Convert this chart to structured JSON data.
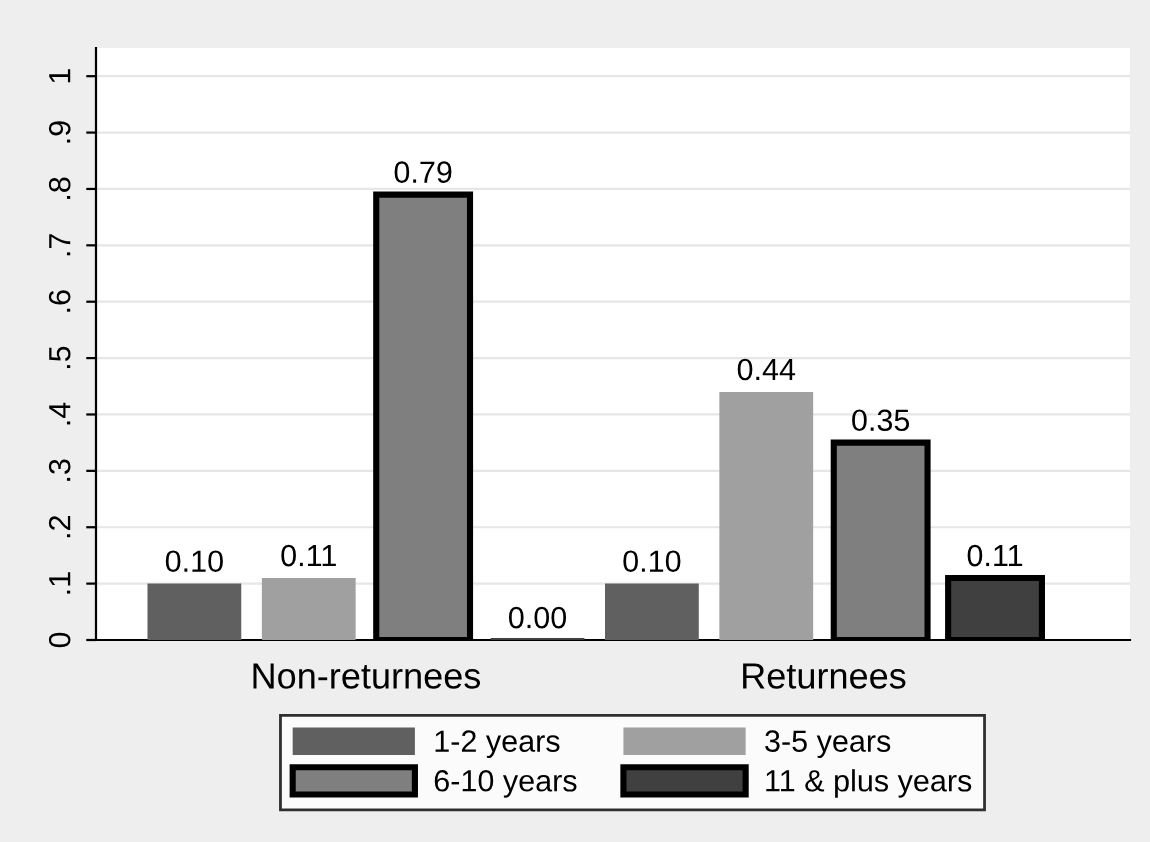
{
  "chart_data": {
    "type": "bar",
    "categories": [
      "Non-returnees",
      "Returnees"
    ],
    "series": [
      {
        "name": "1-2 years",
        "color": "#606060",
        "values": [
          0.1,
          0.1
        ],
        "value_labels": [
          "0.10",
          "0.10"
        ]
      },
      {
        "name": "3-5 years",
        "color": "#a0a0a0",
        "values": [
          0.11,
          0.44
        ],
        "value_labels": [
          "0.11",
          "0.44"
        ]
      },
      {
        "name": "6-10 years",
        "color": "#7f7f7f",
        "values": [
          0.79,
          0.35
        ],
        "value_labels": [
          "0.79",
          "0.35"
        ]
      },
      {
        "name": "11 & plus years",
        "color": "#404040",
        "values": [
          0.0,
          0.11
        ],
        "value_labels": [
          "0.00",
          "0.11"
        ]
      }
    ],
    "ylim": [
      0,
      1.05
    ],
    "yticks": [
      0,
      {
        "value": 0.1,
        "label": ".1"
      },
      {
        "value": 0.2,
        "label": ".2"
      },
      {
        "value": 0.3,
        "label": ".3"
      },
      {
        "value": 0.4,
        "label": ".4"
      },
      {
        "value": 0.5,
        "label": ".5"
      },
      {
        "value": 0.6,
        "label": ".6"
      },
      {
        "value": 0.7,
        "label": ".7"
      },
      {
        "value": 0.8,
        "label": ".8"
      },
      {
        "value": 0.9,
        "label": ".9"
      },
      1
    ],
    "grid": "y",
    "legend": "bottom"
  }
}
